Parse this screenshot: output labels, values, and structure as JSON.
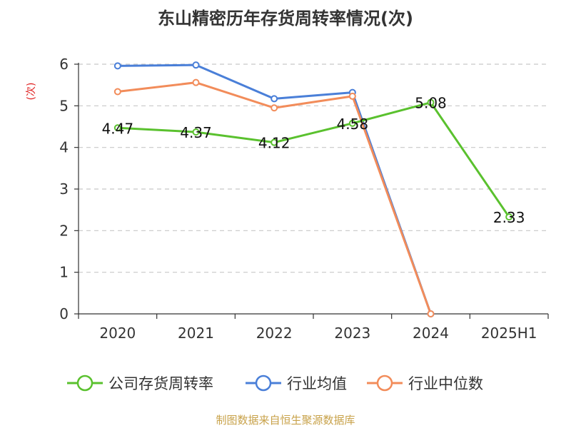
{
  "chart_data": {
    "type": "line",
    "title": "东山精密历年存货周转率情况(次)",
    "ylabel": "(次)",
    "xlabel": "",
    "categories": [
      "2020",
      "2021",
      "2022",
      "2023",
      "2024",
      "2025H1"
    ],
    "ylim": [
      0,
      6
    ],
    "yticks": [
      0,
      1,
      2,
      3,
      4,
      5,
      6
    ],
    "grid": true,
    "legend_position": "bottom",
    "series": [
      {
        "name": "公司存货周转率",
        "color": "#5ac12e",
        "values": [
          4.47,
          4.37,
          4.12,
          4.58,
          5.08,
          2.33
        ],
        "labels": [
          "4.47",
          "4.37",
          "4.12",
          "4.58",
          "5.08",
          "2.33"
        ]
      },
      {
        "name": "行业均值",
        "color": "#4a7fd8",
        "values": [
          5.96,
          5.98,
          5.17,
          5.32,
          0,
          null
        ],
        "labels": []
      },
      {
        "name": "行业中位数",
        "color": "#f28c5a",
        "values": [
          5.34,
          5.56,
          4.95,
          5.23,
          0,
          null
        ],
        "labels": []
      }
    ]
  },
  "source": "制图数据来自恒生聚源数据库"
}
